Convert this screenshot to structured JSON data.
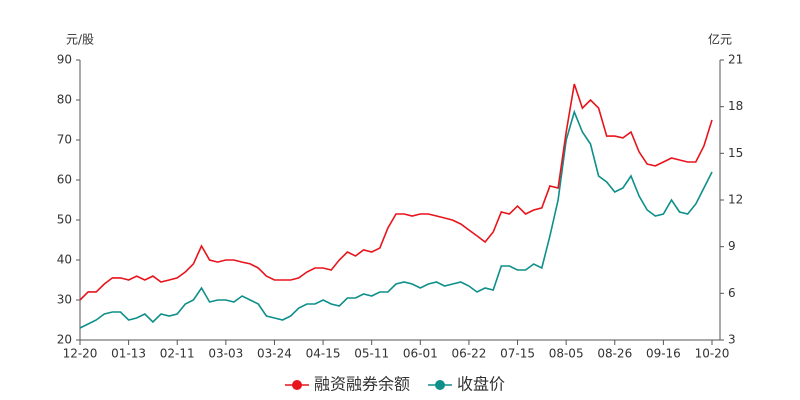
{
  "chart_data": {
    "type": "line",
    "y_label": "元/股",
    "y2_label": "亿元",
    "categories": [
      "12-20",
      null,
      null,
      null,
      null,
      null,
      "01-13",
      null,
      null,
      null,
      null,
      null,
      "02-11",
      null,
      null,
      null,
      null,
      null,
      "03-03",
      null,
      null,
      null,
      null,
      null,
      "03-24",
      null,
      null,
      null,
      null,
      null,
      "04-15",
      null,
      null,
      null,
      null,
      null,
      "05-11",
      null,
      null,
      null,
      null,
      null,
      "06-01",
      null,
      null,
      null,
      null,
      null,
      "06-22",
      null,
      null,
      null,
      null,
      null,
      "07-15",
      null,
      null,
      null,
      null,
      null,
      "08-05",
      null,
      null,
      null,
      null,
      null,
      "08-26",
      null,
      null,
      null,
      null,
      null,
      "09-16",
      null,
      null,
      null,
      null,
      null,
      "10-20"
    ],
    "series": [
      {
        "name": "融资融券余额",
        "color": "#e8141c",
        "axis": "y2",
        "values": [
          5.57,
          6.09,
          6.09,
          6.6,
          6.99,
          6.99,
          6.86,
          7.11,
          6.86,
          7.11,
          6.73,
          6.86,
          6.99,
          7.37,
          7.89,
          9.04,
          8.14,
          8.01,
          8.14,
          8.14,
          8.01,
          7.89,
          7.63,
          7.11,
          6.86,
          6.86,
          6.86,
          6.99,
          7.37,
          7.63,
          7.63,
          7.5,
          8.14,
          8.66,
          8.4,
          8.79,
          8.66,
          8.91,
          10.2,
          11.1,
          11.1,
          10.97,
          11.1,
          11.1,
          10.97,
          10.84,
          10.71,
          10.46,
          10.07,
          9.69,
          9.3,
          9.94,
          11.23,
          11.1,
          11.61,
          11.1,
          11.36,
          11.49,
          12.9,
          12.77,
          16.37,
          19.46,
          17.91,
          18.43,
          17.91,
          16.11,
          16.11,
          15.99,
          16.37,
          15.09,
          14.31,
          14.19,
          14.44,
          14.7,
          14.57,
          14.44,
          14.44,
          15.47,
          17.14
        ]
      },
      {
        "name": "收盘价",
        "color": "#0e8f8a",
        "values": [
          23,
          24,
          25,
          26.5,
          27,
          27,
          25,
          25.5,
          26.5,
          24.5,
          26.5,
          26,
          26.5,
          29,
          30,
          33,
          29.5,
          30,
          30,
          29.5,
          31,
          30,
          29,
          26,
          25.5,
          25,
          26,
          28,
          29,
          29,
          30,
          29,
          28.5,
          30.5,
          30.5,
          31.5,
          31,
          32,
          32,
          34,
          34.5,
          34,
          33,
          34,
          34.5,
          33.5,
          34,
          34.5,
          33.5,
          32,
          33,
          32.5,
          38.5,
          38.5,
          37.5,
          37.5,
          39,
          38,
          46,
          55,
          70,
          77,
          72,
          69,
          61,
          59.5,
          57,
          58,
          61,
          56,
          52.5,
          51,
          51.5,
          55,
          52,
          51.5,
          54,
          58,
          62
        ]
      }
    ],
    "ylim": [
      20,
      90
    ],
    "yticks": [
      20,
      30,
      40,
      50,
      60,
      70,
      80,
      90
    ],
    "y2lim": [
      3,
      21
    ],
    "y2ticks": [
      3,
      6,
      9,
      12,
      15,
      18,
      21
    ]
  }
}
